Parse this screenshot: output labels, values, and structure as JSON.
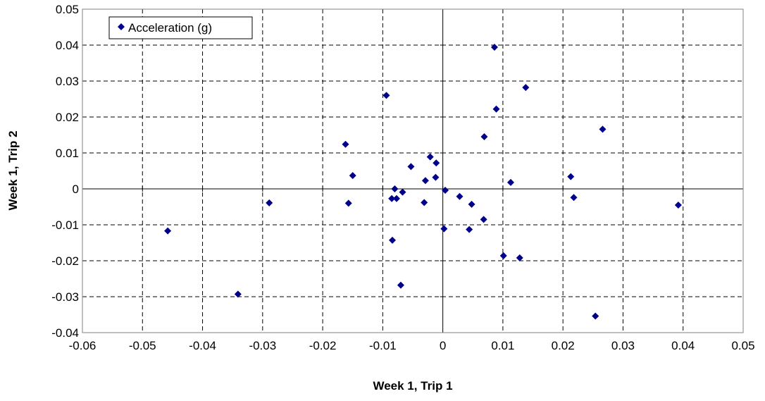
{
  "chart_data": {
    "type": "scatter",
    "title": "",
    "xlabel": "Week 1, Trip 1",
    "ylabel": "Week 1, Trip 2",
    "xlim": [
      -0.06,
      0.05
    ],
    "ylim": [
      -0.04,
      0.05
    ],
    "xticks": [
      -0.06,
      -0.05,
      -0.04,
      -0.03,
      -0.02,
      -0.01,
      0,
      0.01,
      0.02,
      0.03,
      0.04,
      0.05
    ],
    "yticks": [
      -0.04,
      -0.03,
      -0.02,
      -0.01,
      0,
      0.01,
      0.02,
      0.03,
      0.04,
      0.05
    ],
    "xtick_labels": [
      "-0.06",
      "-0.05",
      "-0.04",
      "-0.03",
      "-0.02",
      "-0.01",
      "0",
      "0.01",
      "0.02",
      "0.03",
      "0.04",
      "0.05"
    ],
    "ytick_labels": [
      "-0.04",
      "-0.03",
      "-0.02",
      "-0.01",
      "0",
      "0.01",
      "0.02",
      "0.03",
      "0.04",
      "0.05"
    ],
    "grid": true,
    "legend": {
      "position": "top-left",
      "entries": [
        "Acceleration (g)"
      ]
    },
    "series": [
      {
        "name": "Acceleration (g)",
        "color": "#00008B",
        "marker": "diamond",
        "points": [
          [
            -0.0458,
            -0.0117
          ],
          [
            -0.0341,
            -0.0293
          ],
          [
            -0.0289,
            -0.0039
          ],
          [
            -0.0162,
            0.0124
          ],
          [
            -0.0157,
            -0.004
          ],
          [
            -0.015,
            0.0037
          ],
          [
            -0.0094,
            0.026
          ],
          [
            -0.0085,
            -0.0027
          ],
          [
            -0.0084,
            -0.0143
          ],
          [
            -0.008,
            0.0
          ],
          [
            -0.0077,
            -0.0027
          ],
          [
            -0.007,
            -0.0268
          ],
          [
            -0.0067,
            -0.0009
          ],
          [
            -0.0053,
            0.0062
          ],
          [
            -0.0031,
            -0.0038
          ],
          [
            -0.0029,
            0.0023
          ],
          [
            -0.0021,
            0.0089
          ],
          [
            -0.0012,
            0.0032
          ],
          [
            -0.0011,
            0.0072
          ],
          [
            0.0004,
            -0.0004
          ],
          [
            0.0002,
            -0.0111
          ],
          [
            0.0028,
            -0.0021
          ],
          [
            0.0044,
            -0.0113
          ],
          [
            0.0048,
            -0.0043
          ],
          [
            0.0068,
            -0.0085
          ],
          [
            0.0069,
            0.0145
          ],
          [
            0.0086,
            0.0394
          ],
          [
            0.0089,
            0.0222
          ],
          [
            0.0101,
            -0.0186
          ],
          [
            0.0113,
            0.0018
          ],
          [
            0.0128,
            -0.0192
          ],
          [
            0.0138,
            0.0282
          ],
          [
            0.0213,
            0.0034
          ],
          [
            0.0218,
            -0.0024
          ],
          [
            0.0254,
            -0.0354
          ],
          [
            0.0266,
            0.0166
          ],
          [
            0.0392,
            -0.0045
          ]
        ]
      }
    ]
  }
}
